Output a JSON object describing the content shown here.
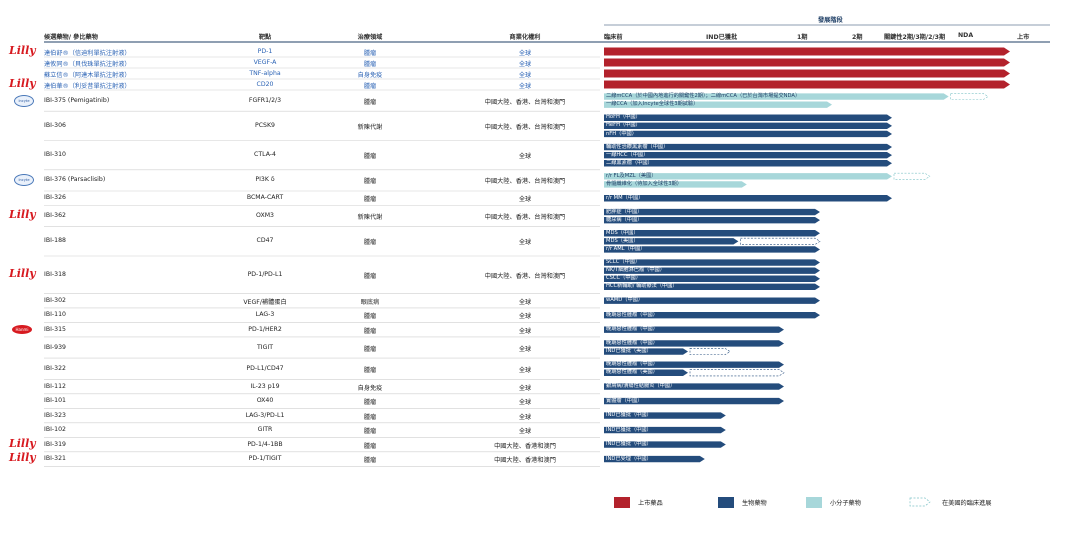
{
  "chart_data": {
    "type": "gantt",
    "colors": {
      "marketed": "#b3222c",
      "biologic": "#244c7c",
      "small_molecule": "#a7d7da",
      "header_line": "#1f3f66"
    },
    "header": {
      "stage_group": "發展階段",
      "col_drug": "候選藥物/ 參比藥物",
      "col_target": "靶點",
      "col_area": "治療領域",
      "col_rights": "商業化權利",
      "stages": [
        "臨床前",
        "IND已獲批",
        "1期",
        "2期",
        "關鍵性2期/3期/2/3期",
        "NDA",
        "上市"
      ]
    },
    "rows": [
      {
        "logo": "Lilly",
        "drug": "達伯舒®（信迪利單抗注射液）",
        "drug_style": "blue",
        "target": "PD-1",
        "area": "腫瘤",
        "rights": "全球",
        "rights_style": "blue",
        "bars": [
          {
            "end": 6,
            "type": "marketed",
            "label": ""
          }
        ]
      },
      {
        "logo": "",
        "drug": "達攸同®（貝伐珠單抗注射液）",
        "drug_style": "blue",
        "target": "VEGF-A",
        "area": "腫瘤",
        "rights": "全球",
        "rights_style": "blue",
        "bars": [
          {
            "end": 6,
            "type": "marketed",
            "label": ""
          }
        ]
      },
      {
        "logo": "",
        "drug": "蘇立信®（阿達木單抗注射液）",
        "drug_style": "blue",
        "target": "TNF-alpha",
        "area": "自身免疫",
        "rights": "全球",
        "rights_style": "blue",
        "bars": [
          {
            "end": 6,
            "type": "marketed",
            "label": ""
          }
        ]
      },
      {
        "logo": "Lilly",
        "drug": "達伯華®（利妥昔單抗注射液）",
        "drug_style": "blue",
        "target": "CD20",
        "area": "腫瘤",
        "rights": "全球",
        "rights_style": "blue",
        "bars": [
          {
            "end": 6,
            "type": "marketed",
            "label": ""
          }
        ]
      },
      {
        "logo": "Incyte",
        "drug": "IBI-375 (Pemigatinib)",
        "drug_style": "",
        "target": "FGFR1/2/3",
        "area": "腫瘤",
        "rights": "中國大陸、香港、台灣和澳門",
        "rights_style": "",
        "bars": [
          {
            "end": 4.9,
            "type": "small_molecule",
            "label": "二線mCCA（於中國內地進行的關鍵性2期）；二線mCCA（已於台灣市場提交NDA）",
            "label_style": "dark",
            "dashed_to": 5.6
          },
          {
            "end": 3.0,
            "type": "small_molecule",
            "label": "一線CCA（加入Incyte全球性3期試驗）",
            "label_style": "dark"
          }
        ]
      },
      {
        "logo": "",
        "drug": "IBI-306",
        "drug_style": "",
        "target": "PCSK9",
        "area": "新陳代謝",
        "rights": "中國大陸、香港、台灣和澳門",
        "rights_style": "",
        "bars": [
          {
            "end": 4.0,
            "type": "biologic",
            "label": "HoFH（中國）"
          },
          {
            "end": 4.0,
            "type": "biologic",
            "label": "HeFH（中國）"
          },
          {
            "end": 4.0,
            "type": "biologic",
            "label": "nFH（中國）"
          }
        ]
      },
      {
        "logo": "",
        "drug": "IBI-310",
        "drug_style": "",
        "target": "CTLA-4",
        "area": "腫瘤",
        "rights": "全球",
        "rights_style": "",
        "bars": [
          {
            "end": 4.0,
            "type": "biologic",
            "label": "輔助性治療黑素瘤（中國）"
          },
          {
            "end": 4.0,
            "type": "biologic",
            "label": "一線HCC（中國）"
          },
          {
            "end": 4.0,
            "type": "biologic",
            "label": "二線黑素瘤（中國）"
          }
        ]
      },
      {
        "logo": "Incyte",
        "drug": "IBI-376 (Parsaclisib)",
        "drug_style": "",
        "target": "PI3K δ",
        "area": "腫瘤",
        "rights": "中國大陸、香港、台灣和澳門",
        "rights_style": "",
        "bars": [
          {
            "end": 4.0,
            "type": "small_molecule",
            "label": "r/r FL及MZL（美國）",
            "label_style": "dark",
            "dashed_to": 4.6
          },
          {
            "end": 1.7,
            "type": "small_molecule",
            "label": "骨髓纖維化（待加入全球性3期）",
            "label_style": "dark"
          }
        ]
      },
      {
        "logo": "",
        "drug": "IBI-326",
        "drug_style": "",
        "target": "BCMA-CART",
        "area": "腫瘤",
        "rights": "全球",
        "rights_style": "",
        "bars": [
          {
            "end": 4.0,
            "type": "biologic",
            "label": "r/r MM（中國）"
          }
        ]
      },
      {
        "logo": "Lilly",
        "drug": "IBI-362",
        "drug_style": "",
        "target": "OXM3",
        "area": "新陳代謝",
        "rights": "中國大陸、香港、台灣和澳門",
        "rights_style": "",
        "bars": [
          {
            "end": 2.8,
            "type": "biologic",
            "label": "肥胖症（中國）"
          },
          {
            "end": 2.8,
            "type": "biologic",
            "label": "糖尿病（中國）"
          }
        ]
      },
      {
        "logo": "",
        "drug": "IBI-188",
        "drug_style": "",
        "target": "CD47",
        "area": "腫瘤",
        "rights": "全球",
        "rights_style": "",
        "bars": [
          {
            "end": 2.8,
            "type": "biologic",
            "label": "MDS（中國）"
          },
          {
            "end": 1.6,
            "type": "biologic",
            "label": "MDS（美國）",
            "dashed_to": 2.8
          },
          {
            "end": 2.8,
            "type": "biologic",
            "label": "r/r AML（中國）"
          }
        ]
      },
      {
        "logo": "Lilly",
        "drug": "IBI-318",
        "drug_style": "",
        "target": "PD-1/PD-L1",
        "area": "腫瘤",
        "rights": "中國大陸、香港、台灣和澳門",
        "rights_style": "",
        "bars": [
          {
            "end": 2.8,
            "type": "biologic",
            "label": "SCLC（中國）"
          },
          {
            "end": 2.8,
            "type": "biologic",
            "label": "NK/T細胞淋巴瘤（中國）"
          },
          {
            "end": 2.8,
            "type": "biologic",
            "label": "CSCC（中國）"
          },
          {
            "end": 2.8,
            "type": "biologic",
            "label": "HCC新輔助/ 輔助療法（中國）"
          }
        ]
      },
      {
        "logo": "",
        "drug": "IBI-302",
        "drug_style": "",
        "target": "VEGF/補體蛋白",
        "area": "眼底病",
        "rights": "全球",
        "rights_style": "",
        "bars": [
          {
            "end": 2.8,
            "type": "biologic",
            "label": "wAMD（中國）"
          }
        ]
      },
      {
        "logo": "",
        "drug": "IBI-110",
        "drug_style": "",
        "target": "LAG-3",
        "area": "腫瘤",
        "rights": "全球",
        "rights_style": "",
        "bars": [
          {
            "end": 2.8,
            "type": "biologic",
            "label": "晚期惡性腫瘤（中國）"
          }
        ]
      },
      {
        "logo": "Hanmi",
        "drug": "IBI-315",
        "drug_style": "",
        "target": "PD-1/HER2",
        "area": "腫瘤",
        "rights": "全球",
        "rights_style": "",
        "bars": [
          {
            "end": 2.2,
            "type": "biologic",
            "label": "晚期惡性腫瘤（中國）"
          }
        ]
      },
      {
        "logo": "",
        "drug": "IBI-939",
        "drug_style": "",
        "target": "TIGIT",
        "area": "腫瘤",
        "rights": "全球",
        "rights_style": "",
        "bars": [
          {
            "end": 2.2,
            "type": "biologic",
            "label": "晚期惡性腫瘤（中國）"
          },
          {
            "end": 1.0,
            "type": "biologic",
            "label": "IND已獲批（美國）",
            "dashed_to": 1.5
          }
        ]
      },
      {
        "logo": "",
        "drug": "IBI-322",
        "drug_style": "",
        "target": "PD-L1/CD47",
        "area": "腫瘤",
        "rights": "全球",
        "rights_style": "",
        "bars": [
          {
            "end": 2.2,
            "type": "biologic",
            "label": "晚期惡性腫瘤（中國）"
          },
          {
            "end": 1.0,
            "type": "biologic",
            "label": "晚期惡性腫瘤（美國）",
            "dashed_to": 2.2
          }
        ]
      },
      {
        "logo": "",
        "drug": "IBI-112",
        "drug_style": "",
        "target": "IL-23 p19",
        "area": "自身免疫",
        "rights": "全球",
        "rights_style": "",
        "bars": [
          {
            "end": 2.2,
            "type": "biologic",
            "label": "銀屑病/潰瘍性結腸炎（中國）"
          }
        ]
      },
      {
        "logo": "",
        "drug": "IBI-101",
        "drug_style": "",
        "target": "OX40",
        "area": "腫瘤",
        "rights": "全球",
        "rights_style": "",
        "bars": [
          {
            "end": 2.2,
            "type": "biologic",
            "label": "實體瘤（中國）"
          }
        ]
      },
      {
        "logo": "",
        "drug": "IBI-323",
        "drug_style": "",
        "target": "LAG-3/PD-L1",
        "area": "腫瘤",
        "rights": "全球",
        "rights_style": "",
        "bars": [
          {
            "end": 1.45,
            "type": "biologic",
            "label": "IND已獲批（中國）"
          }
        ]
      },
      {
        "logo": "",
        "drug": "IBI-102",
        "drug_style": "",
        "target": "GITR",
        "area": "腫瘤",
        "rights": "全球",
        "rights_style": "",
        "bars": [
          {
            "end": 1.45,
            "type": "biologic",
            "label": "IND已獲批（中國）"
          }
        ]
      },
      {
        "logo": "Lilly",
        "drug": "IBI-319",
        "drug_style": "",
        "target": "PD-1/4-1BB",
        "area": "腫瘤",
        "rights": "中國大陸、香港和澳門",
        "rights_style": "",
        "bars": [
          {
            "end": 1.45,
            "type": "biologic",
            "label": "IND已獲批（中國）"
          }
        ]
      },
      {
        "logo": "Lilly",
        "drug": "IBI-321",
        "drug_style": "",
        "target": "PD-1/TIGIT",
        "area": "腫瘤",
        "rights": "中國大陸、香港和澳門",
        "rights_style": "",
        "bars": [
          {
            "end": 1.2,
            "type": "biologic",
            "label": "IND已受理（中國）"
          }
        ]
      }
    ],
    "legend": [
      {
        "type": "marketed",
        "label": "上市藥品"
      },
      {
        "type": "biologic",
        "label": "生物藥物"
      },
      {
        "type": "small_molecule",
        "label": "小分子藥物"
      },
      {
        "type": "dashed",
        "label": "在美國的臨床進展"
      }
    ]
  }
}
